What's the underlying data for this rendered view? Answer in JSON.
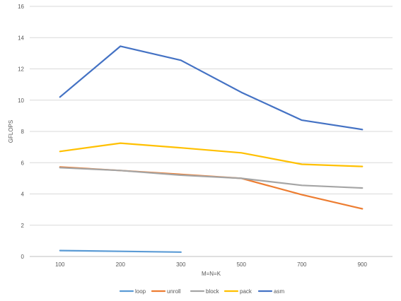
{
  "chart_data": {
    "type": "line",
    "title": "",
    "xlabel": "M=N=K",
    "ylabel": "GFLOPS",
    "categories": [
      "100",
      "200",
      "300",
      "500",
      "700",
      "900"
    ],
    "ylim": [
      0,
      16
    ],
    "yticks": [
      0,
      2,
      4,
      6,
      8,
      10,
      12,
      14,
      16
    ],
    "grid": true,
    "legend_position": "bottom",
    "series": [
      {
        "name": "loop",
        "color": "#5b9bd5",
        "values": [
          0.38,
          0.33,
          0.28,
          null,
          null,
          null
        ]
      },
      {
        "name": "unroll",
        "color": "#ed7d31",
        "values": [
          5.72,
          5.5,
          5.25,
          5.0,
          3.95,
          3.05
        ]
      },
      {
        "name": "block",
        "color": "#a5a5a5",
        "values": [
          5.68,
          5.5,
          5.2,
          5.0,
          4.55,
          4.38
        ]
      },
      {
        "name": "pack",
        "color": "#ffc000",
        "values": [
          6.72,
          7.25,
          6.95,
          6.63,
          5.9,
          5.76
        ]
      },
      {
        "name": "asm",
        "color": "#4472c4",
        "values": [
          10.2,
          13.45,
          12.55,
          10.5,
          8.72,
          8.12
        ]
      }
    ]
  }
}
